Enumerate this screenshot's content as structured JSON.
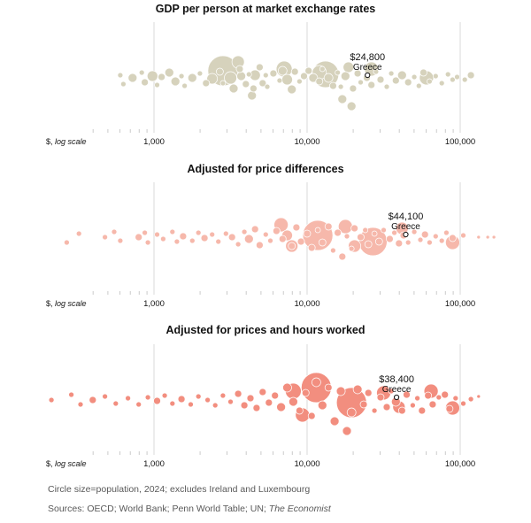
{
  "chart_data": [
    {
      "type": "scatter",
      "title": "GDP per person at market exchange rates",
      "x_scale": "log",
      "xlim": [
        400,
        125000
      ],
      "x_ticks": [
        "1,000",
        "10,000",
        "100,000"
      ],
      "x_tick_values": [
        1000,
        10000,
        100000
      ],
      "unit_label": "$, log scale",
      "color": "#d6d2bc",
      "highlight": {
        "name": "Greece",
        "value": 24800,
        "label": "$24,800"
      }
    },
    {
      "type": "scatter",
      "title": "Adjusted for price differences",
      "x_scale": "log",
      "xlim": [
        400,
        125000
      ],
      "x_ticks": [
        "1,000",
        "10,000",
        "100,000"
      ],
      "x_tick_values": [
        1000,
        10000,
        100000
      ],
      "unit_label": "$, log scale",
      "color": "#f6b8ab",
      "highlight": {
        "name": "Greece",
        "value": 44100,
        "label": "$44,100"
      }
    },
    {
      "type": "scatter",
      "title": "Adjusted for prices and hours worked",
      "x_scale": "log",
      "xlim": [
        400,
        125000
      ],
      "x_ticks": [
        "1,000",
        "10,000",
        "100,000"
      ],
      "x_tick_values": [
        1000,
        10000,
        100000
      ],
      "unit_label": "$, log scale",
      "color": "#f28e7f",
      "highlight": {
        "name": "Greece",
        "value": 38400,
        "label": "$38,400"
      }
    }
  ],
  "notes": {
    "size_note": "Circle size=population, 2024; excludes Ireland and Luxembourg",
    "sources_prefix": "Sources: OECD; World Bank; Penn World Table; UN;",
    "sources_italic": "The Economist"
  }
}
